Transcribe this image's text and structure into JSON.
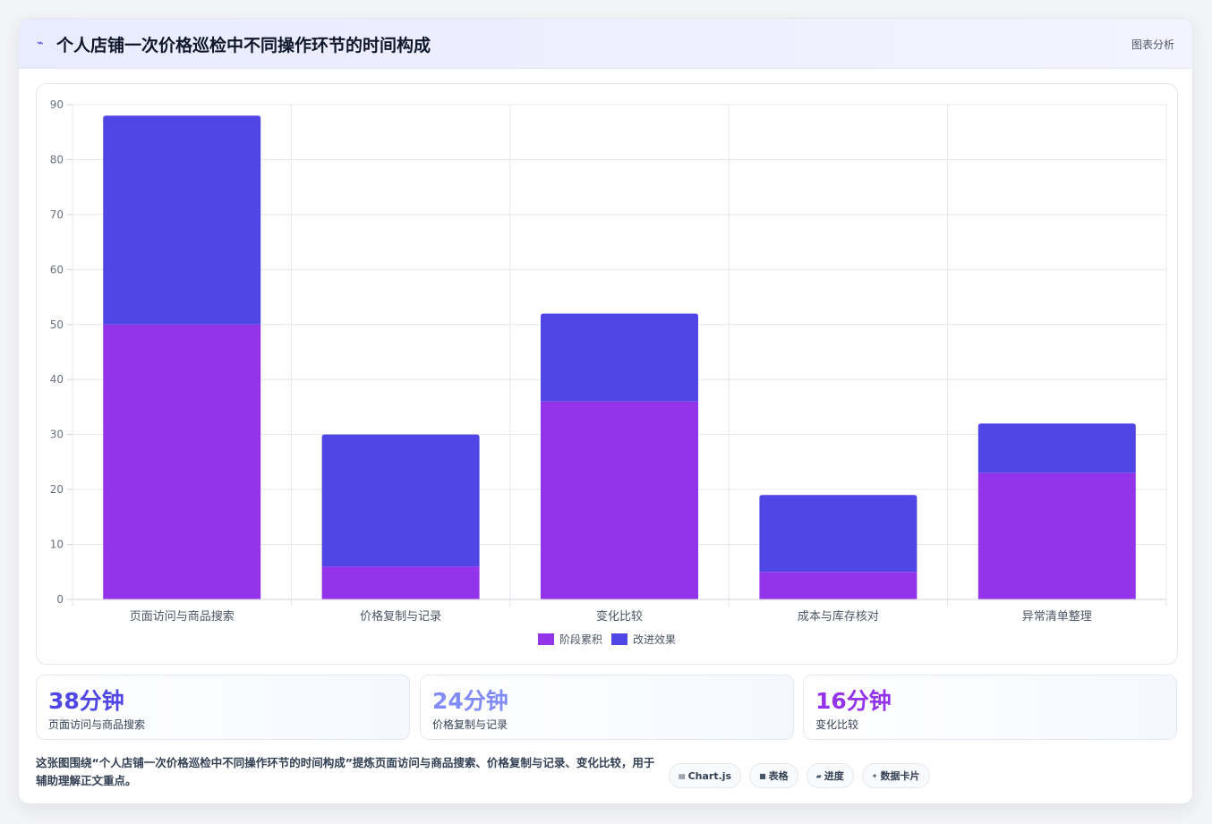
{
  "header": {
    "icon": "chart-line-icon",
    "title": "个人店铺一次价格巡检中不同操作环节的时间构成",
    "action_label": "图表分析"
  },
  "chart_data": {
    "type": "bar",
    "stacked": true,
    "categories": [
      "页面访问与商品搜索",
      "价格复制与记录",
      "变化比较",
      "成本与库存核对",
      "异常清单整理"
    ],
    "series": [
      {
        "name": "阶段累积",
        "values": [
          50,
          6,
          36,
          5,
          23
        ],
        "color": "#9333ea"
      },
      {
        "name": "改进效果",
        "values": [
          38,
          24,
          16,
          14,
          9
        ],
        "color": "#4f46e5"
      }
    ],
    "ylim": [
      0,
      90
    ],
    "yticks": [
      0,
      10,
      20,
      30,
      40,
      50,
      60,
      70,
      80,
      90
    ],
    "grid": true,
    "legend": "bottom-center"
  },
  "stats": [
    {
      "value": "38分钟",
      "label": "页面访问与商品搜索",
      "color": "#4f46e5"
    },
    {
      "value": "24分钟",
      "label": "价格复制与记录",
      "color": "#818cf8"
    },
    {
      "value": "16分钟",
      "label": "变化比较",
      "color": "#9333ea"
    }
  ],
  "description": "这张图围绕“个人店铺一次价格巡检中不同操作环节的时间构成”提炼页面访问与商品搜索、价格复制与记录、变化比较，用于辅助理解正文重点。",
  "tags": [
    {
      "icon": "chart-icon",
      "glyph": "▤",
      "label": "Chart.js"
    },
    {
      "icon": "table-icon",
      "glyph": "■",
      "label": "表格"
    },
    {
      "icon": "progress-icon",
      "glyph": "▰",
      "label": "进度"
    },
    {
      "icon": "card-icon",
      "glyph": "✦",
      "label": "数据卡片"
    }
  ]
}
